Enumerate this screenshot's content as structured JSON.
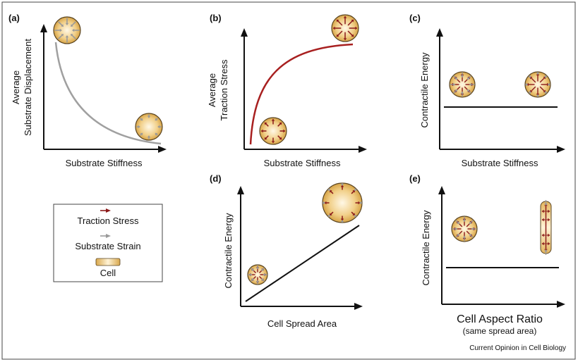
{
  "panels": {
    "a": {
      "label": "(a)",
      "xlabel": "Substrate Stiffness",
      "ylabel_line1": "Average",
      "ylabel_line2": "Substrate Displacement"
    },
    "b": {
      "label": "(b)",
      "xlabel": "Substrate Stiffness",
      "ylabel_line1": "Average",
      "ylabel_line2": "Traction Stress"
    },
    "c": {
      "label": "(c)",
      "xlabel": "Substrate Stiffness",
      "ylabel": "Contractile Energy"
    },
    "d": {
      "label": "(d)",
      "xlabel": "Cell Spread Area",
      "ylabel": "Contractile Energy"
    },
    "e": {
      "label": "(e)",
      "xlabel": "Cell Aspect Ratio",
      "xsublabel": "(same spread area)",
      "ylabel": "Contractile Energy"
    }
  },
  "legend": {
    "traction": "Traction Stress",
    "strain": "Substrate Strain",
    "cell": "Cell"
  },
  "credit": "Current Opinion in Cell Biology",
  "colors": {
    "traction_arrow": "#8b1a1a",
    "strain_arrow": "#9a9a9a",
    "curve_a": "#a0a0a0",
    "curve_b": "#a82020",
    "cell_center": "#fff6e0",
    "cell_edge": "#d9a94e",
    "cell_outline": "#5a4420"
  }
}
